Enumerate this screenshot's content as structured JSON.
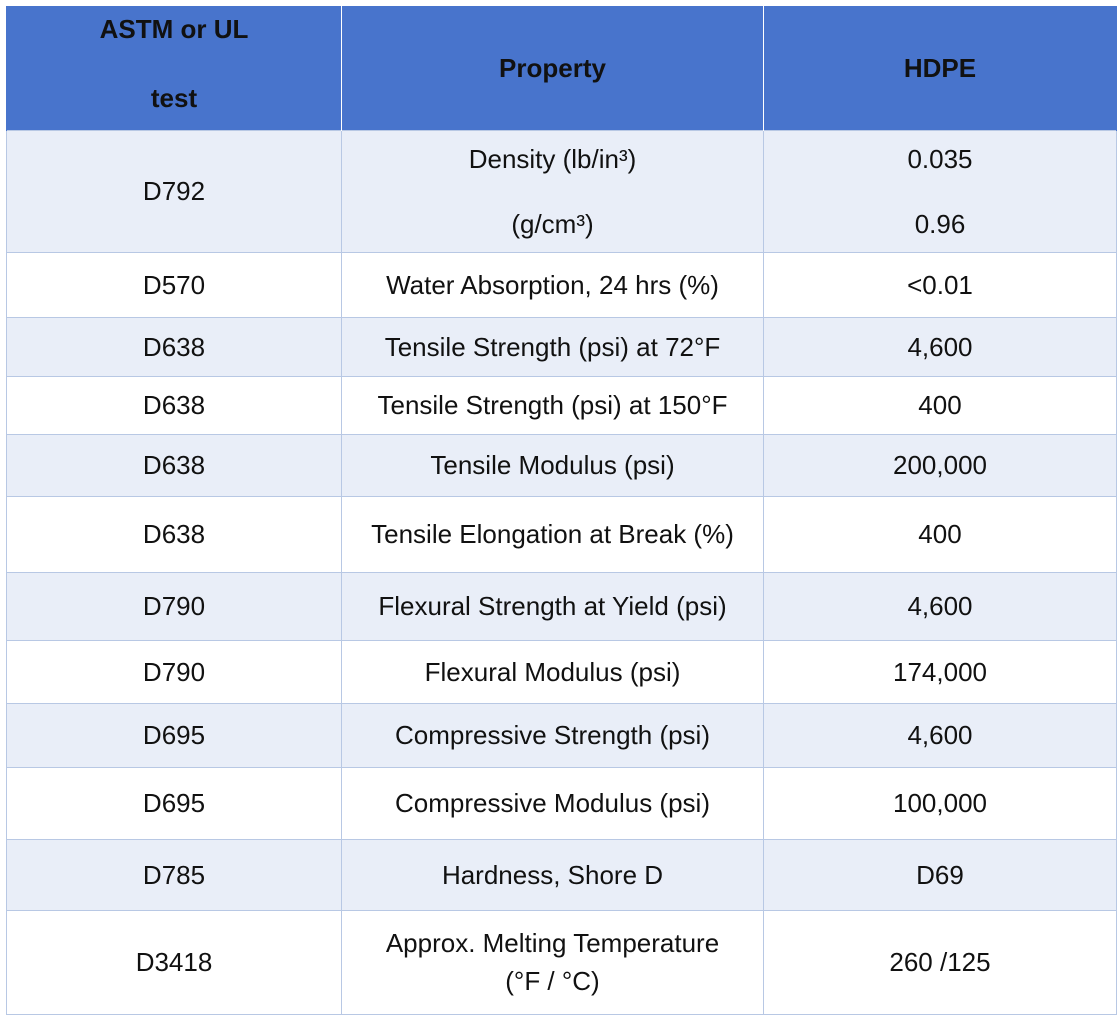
{
  "table": {
    "headers": {
      "test_line1": "ASTM or UL",
      "test_line2": "test",
      "property": "Property",
      "material": "HDPE"
    },
    "rows": [
      {
        "test": "D792",
        "property": [
          "Density (lb/in³)",
          "(g/cm³)"
        ],
        "value": [
          "0.035",
          "0.96"
        ]
      },
      {
        "test": "D570",
        "property": "Water Absorption, 24 hrs (%)",
        "value": "<0.01"
      },
      {
        "test": "D638",
        "property": "Tensile Strength (psi) at 72°F",
        "value": "4,600"
      },
      {
        "test": "D638",
        "property": "Tensile Strength (psi) at 150°F",
        "value": "400"
      },
      {
        "test": "D638",
        "property": "Tensile Modulus (psi)",
        "value": "200,000"
      },
      {
        "test": "D638",
        "property": "Tensile Elongation at Break (%)",
        "value": "400"
      },
      {
        "test": "D790",
        "property": "Flexural Strength at Yield (psi)",
        "value": "4,600"
      },
      {
        "test": "D790",
        "property": "Flexural Modulus (psi)",
        "value": "174,000"
      },
      {
        "test": "D695",
        "property": "Compressive Strength (psi)",
        "value": "4,600"
      },
      {
        "test": "D695",
        "property": "Compressive Modulus (psi)",
        "value": "100,000"
      },
      {
        "test": "D785",
        "property": "Hardness, Shore D",
        "value": "D69"
      },
      {
        "test": "D3418",
        "property": [
          "Approx. Melting Temperature",
          "(°F / °C)"
        ],
        "value": "260 /125"
      }
    ]
  },
  "colors": {
    "header_bg": "#4874cc",
    "alt_row_bg": "#e9eef8",
    "border": "#b8c8e4"
  }
}
